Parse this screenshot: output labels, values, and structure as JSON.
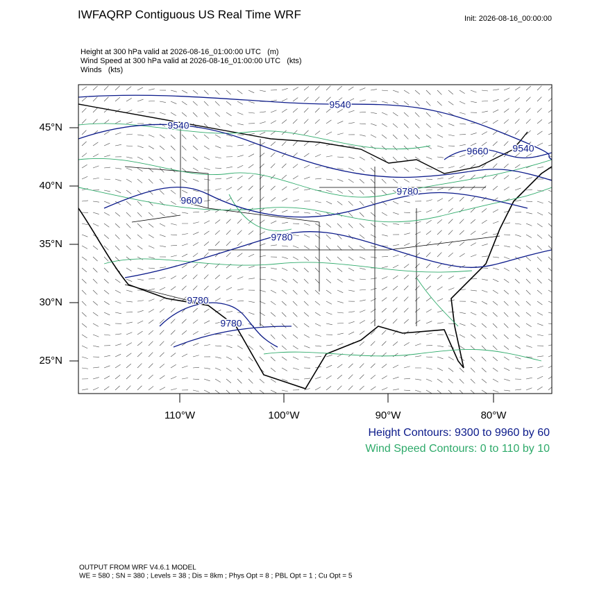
{
  "header": {
    "title": "IWFAQRP Contiguous US Real Time WRF",
    "init": "Init: 2026-08-16_00:00:00"
  },
  "fields": [
    "Height at 300 hPa valid at 2026-08-16_01:00:00 UTC   (m)",
    "Wind Speed at 300 hPa valid at 2026-08-16_01:00:00 UTC   (kts)",
    "Winds   (kts)"
  ],
  "axes": {
    "lat_labels": [
      "45°N",
      "40°N",
      "35°N",
      "30°N",
      "25°N"
    ],
    "lon_labels": [
      "110°W",
      "100°W",
      "90°W",
      "80°W"
    ]
  },
  "contour_labels": [
    9540,
    9540,
    9660,
    9540,
    9780,
    9600,
    9780,
    9780,
    9780
  ],
  "legend": [
    "Height Contours: 9300 to 9960 by 60",
    "Wind Speed Contours: 0 to 110 by 10"
  ],
  "footer": [
    "OUTPUT FROM WRF V4.6.1 MODEL",
    "WE = 580 ; SN = 380 ; Levels = 38 ; Dis = 8km ; Phys Opt = 8 ; PBL Opt = 1 ; Cu Opt = 5"
  ]
}
